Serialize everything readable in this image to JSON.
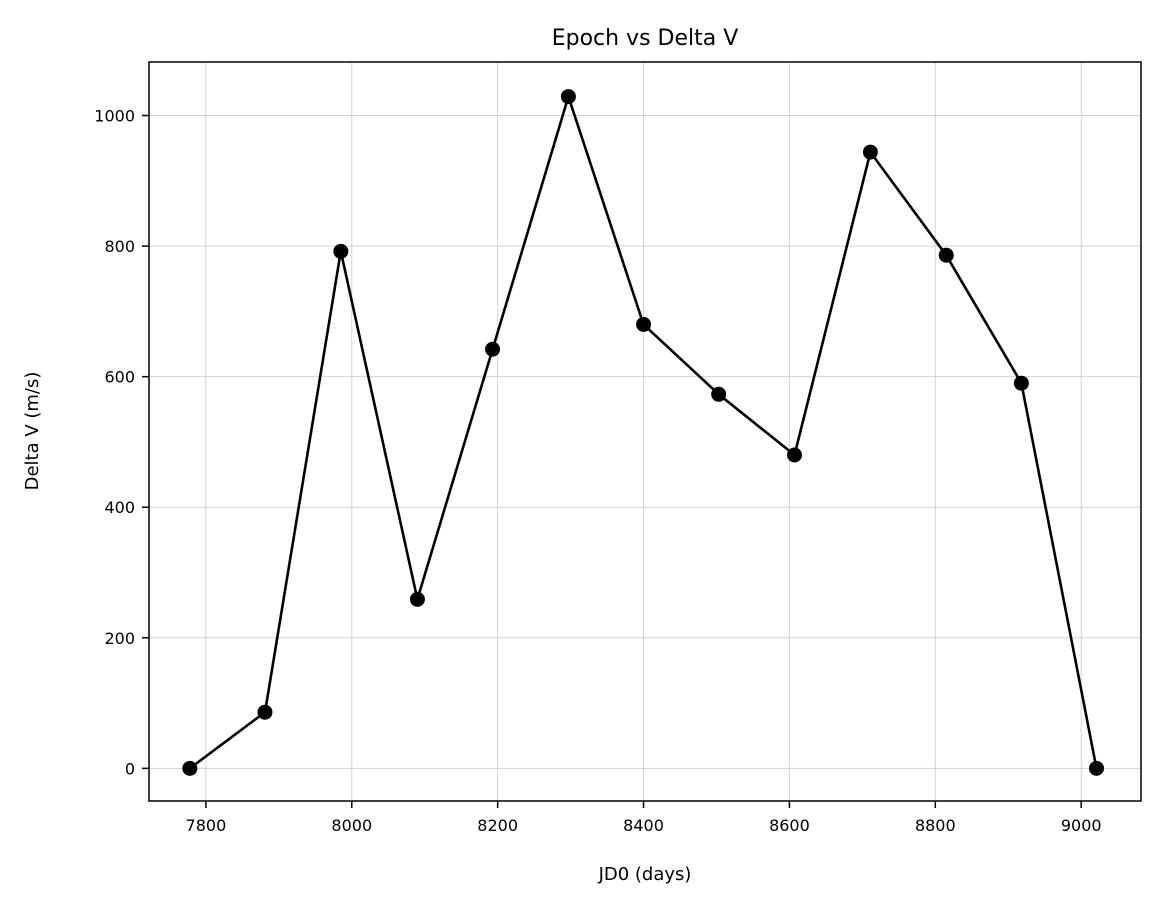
{
  "chart_data": {
    "type": "line",
    "title": "Epoch vs Delta V",
    "xlabel": "JD0 (days)",
    "ylabel": "Delta V (m/s)",
    "xlim": [
      7722,
      9082
    ],
    "ylim": [
      -50,
      1082
    ],
    "xticks": [
      7800,
      8000,
      8200,
      8400,
      8600,
      8800,
      9000
    ],
    "yticks": [
      0,
      200,
      400,
      600,
      800,
      1000
    ],
    "grid": true,
    "legend": "none",
    "series": [
      {
        "color": "#000000",
        "marker": "circle",
        "x": [
          7778,
          7881,
          7985,
          8090,
          8193,
          8297,
          8400,
          8503,
          8607,
          8711,
          8815,
          8918,
          9021
        ],
        "y": [
          0,
          86,
          792,
          259,
          642,
          1029,
          680,
          573,
          480,
          944,
          786,
          590,
          0
        ]
      }
    ]
  }
}
